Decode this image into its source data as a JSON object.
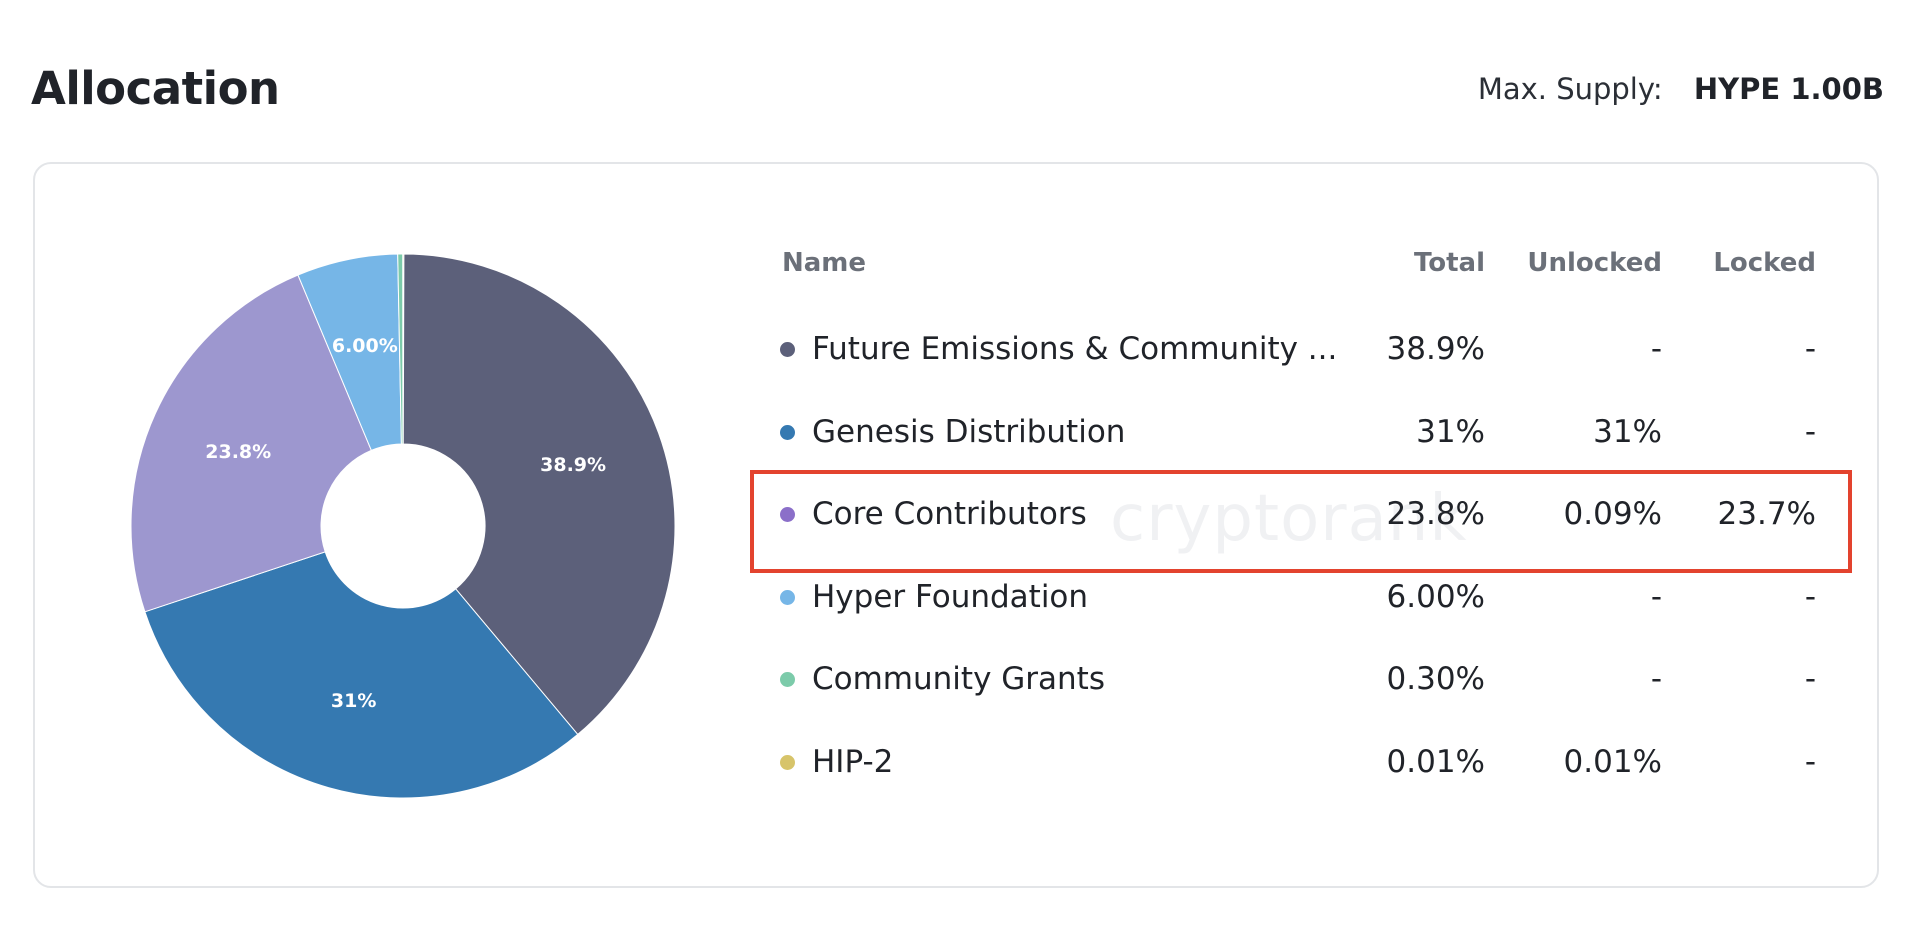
{
  "header": {
    "title": "Allocation",
    "max_supply_label": "Max. Supply:",
    "max_supply_value": "HYPE 1.00B"
  },
  "watermark": "cryptorank",
  "table": {
    "columns": [
      "Name",
      "Total",
      "Unlocked",
      "Locked"
    ],
    "rows": [
      {
        "name": "Future Emissions & Community ...",
        "total": "38.9%",
        "unlocked": "-",
        "locked": "-",
        "color": "#5c607a"
      },
      {
        "name": "Genesis Distribution",
        "total": "31%",
        "unlocked": "31%",
        "locked": "-",
        "color": "#3579b1"
      },
      {
        "name": "Core Contributors",
        "total": "23.8%",
        "unlocked": "0.09%",
        "locked": "23.7%",
        "color": "#8b6fc9"
      },
      {
        "name": "Hyper Foundation",
        "total": "6.00%",
        "unlocked": "-",
        "locked": "-",
        "color": "#76b6e7"
      },
      {
        "name": "Community Grants",
        "total": "0.30%",
        "unlocked": "-",
        "locked": "-",
        "color": "#7ccbaa"
      },
      {
        "name": "HIP-2",
        "total": "0.01%",
        "unlocked": "0.01%",
        "locked": "-",
        "color": "#d7c46a"
      }
    ]
  },
  "chart_data": {
    "type": "pie",
    "donut": true,
    "start": "top",
    "direction": "clockwise",
    "slices": [
      {
        "name": "Future Emissions & Community ...",
        "value": 38.9,
        "label": "38.9%",
        "color": "#5c607a"
      },
      {
        "name": "Genesis Distribution",
        "value": 31.0,
        "label": "31%",
        "color": "#3579b1"
      },
      {
        "name": "Core Contributors",
        "value": 23.8,
        "label": "23.8%",
        "color": "#9d97cf"
      },
      {
        "name": "Hyper Foundation",
        "value": 6.0,
        "label": "6.00%",
        "color": "#76b6e7"
      },
      {
        "name": "Community Grants",
        "value": 0.3,
        "label": "",
        "color": "#7ccbaa"
      },
      {
        "name": "HIP-2",
        "value": 0.01,
        "label": "",
        "color": "#d7c46a"
      }
    ]
  }
}
